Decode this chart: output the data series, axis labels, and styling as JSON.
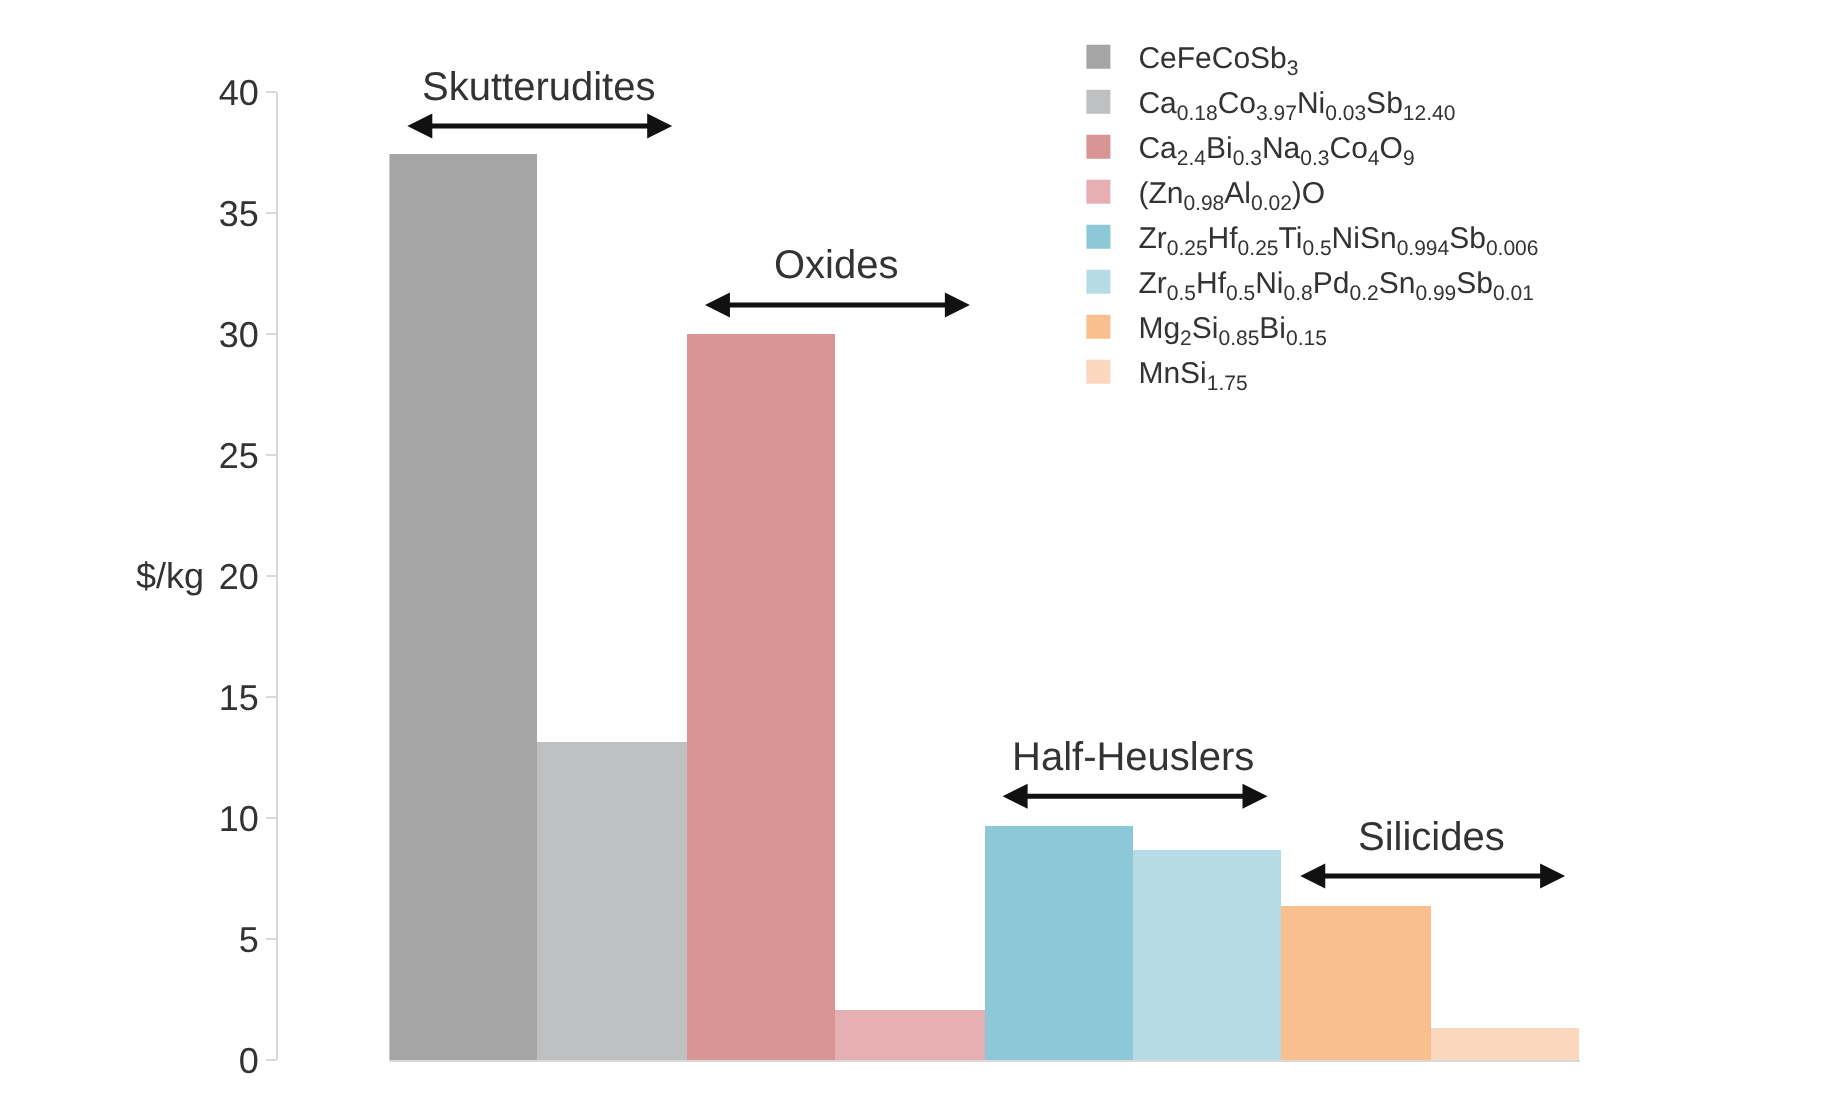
{
  "chart_data": {
    "type": "bar",
    "ylabel": "$/kg",
    "categories": [
      null,
      null,
      null,
      null,
      null,
      null,
      null,
      null
    ],
    "series": [
      {
        "name": "CeFeCoSb$_{3}$",
        "color": "#a5a5a5",
        "values": [
          37.4,
          null,
          null,
          null,
          null,
          null,
          null,
          null
        ]
      },
      {
        "name": "Ca$_{0.18}$Co$_{3.97}$Ni$_{0.03}$Sb$_{12.40}$",
        "color": "#bfc0c1",
        "values": [
          null,
          13.1,
          null,
          null,
          null,
          null,
          null,
          null
        ]
      },
      {
        "name": "Ca$_{2.4}$Bi$_{0.3}$Na$_{0.3}$Co$_{4}$O$_{9}$",
        "color": "#d99594",
        "values": [
          null,
          null,
          30.0,
          null,
          null,
          null,
          null,
          null
        ]
      },
      {
        "name": "(Zn$_{0.98}$Al$_{0.02}$)O",
        "color": "#e6b0b3",
        "values": [
          null,
          null,
          null,
          2.1,
          null,
          null,
          null,
          null
        ]
      },
      {
        "name": "Zr$_{0.25}$Hf$_{0.25}$Ti$_{0.5}$NiSn$_{0.994}$Sb$_{0.006}$",
        "color": "#8cc8d8",
        "values": [
          null,
          null,
          null,
          null,
          9.7,
          null,
          null,
          null
        ]
      },
      {
        "name": "Zr$_{0.5}$Hf$_{0.5}$Ni$_{0.8}$Pd$_{0.2}$Sn$_{0.99}$Sb$_{0.01}$",
        "color": "#b4dbe6",
        "values": [
          null,
          null,
          null,
          null,
          null,
          8.7,
          null,
          null
        ]
      },
      {
        "name": "Mg$_{2}$Si$_{0.85}$Bi$_{0.15}$",
        "color": "#f9bf8f",
        "values": [
          null,
          null,
          null,
          null,
          null,
          null,
          6.4,
          null
        ]
      },
      {
        "name": "MnSi$_{1.75}$",
        "color": "#fbd8bd",
        "values": [
          null,
          null,
          null,
          null,
          null,
          null,
          null,
          1.3
        ]
      }
    ],
    "ylim": [
      0,
      40
    ],
    "yticks": [
      0,
      5,
      10,
      15,
      20,
      25,
      30,
      35,
      40
    ],
    "annotations": [
      "Skutterudites",
      "Oxides",
      "Half-Heuslers",
      "Silicides"
    ],
    "legend": "top right"
  }
}
